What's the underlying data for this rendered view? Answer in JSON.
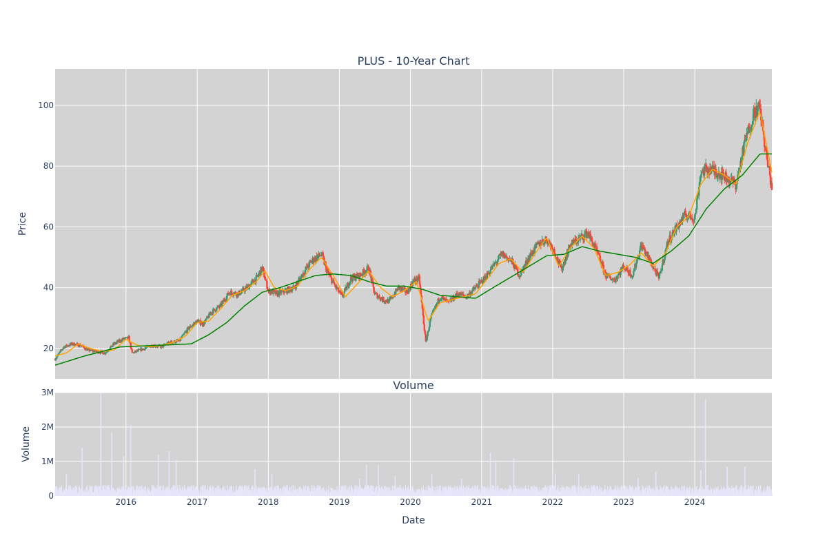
{
  "chart_data": {
    "type": "candlestick",
    "title": "PLUS - 10-Year Chart",
    "colors": {
      "plot_background": "#d3d3d3",
      "grid": "#ffffff",
      "increasing": "#3d9970",
      "decreasing": "#ff4136",
      "ma_short": "#ffa500",
      "ma_long": "#008000",
      "volume_bar": "#e6e6fa",
      "text": "#2a3f5f"
    },
    "price_panel": {
      "ylabel": "Price",
      "ylim": [
        10,
        112
      ],
      "yticks": [
        20,
        40,
        60,
        80,
        100
      ],
      "grid": true,
      "legend": "none",
      "series": [
        {
          "style": "candlestick",
          "approx_close": [
            [
              "2015-01-02",
              16.5
            ],
            [
              "2015-02-15",
              20.5
            ],
            [
              "2015-04-01",
              21.5
            ],
            [
              "2015-05-15",
              21.0
            ],
            [
              "2015-06-15",
              19.5
            ],
            [
              "2015-08-01",
              19.0
            ],
            [
              "2015-09-15",
              18.5
            ],
            [
              "2015-11-01",
              21.5
            ],
            [
              "2015-12-15",
              23.0
            ],
            [
              "2016-01-15",
              23.5
            ],
            [
              "2016-02-01",
              18.5
            ],
            [
              "2016-03-15",
              19.5
            ],
            [
              "2016-05-15",
              21.0
            ],
            [
              "2016-07-01",
              20.5
            ],
            [
              "2016-08-15",
              22.0
            ],
            [
              "2016-10-01",
              22.5
            ],
            [
              "2016-11-15",
              26.5
            ],
            [
              "2017-01-01",
              29.0
            ],
            [
              "2017-02-01",
              28.0
            ],
            [
              "2017-03-15",
              32.0
            ],
            [
              "2017-05-01",
              34.0
            ],
            [
              "2017-06-15",
              38.5
            ],
            [
              "2017-08-01",
              38.0
            ],
            [
              "2017-09-15",
              40.0
            ],
            [
              "2017-11-01",
              43.0
            ],
            [
              "2017-12-01",
              46.5
            ],
            [
              "2018-01-01",
              39.0
            ],
            [
              "2018-02-15",
              38.0
            ],
            [
              "2018-04-01",
              39.0
            ],
            [
              "2018-05-15",
              40.0
            ],
            [
              "2018-07-01",
              45.0
            ],
            [
              "2018-08-15",
              49.0
            ],
            [
              "2018-10-01",
              51.0
            ],
            [
              "2018-11-01",
              45.0
            ],
            [
              "2018-12-15",
              40.0
            ],
            [
              "2019-01-15",
              37.0
            ],
            [
              "2019-03-01",
              43.0
            ],
            [
              "2019-04-15",
              44.0
            ],
            [
              "2019-06-01",
              46.5
            ],
            [
              "2019-07-01",
              38.0
            ],
            [
              "2019-08-15",
              36.0
            ],
            [
              "2019-09-15",
              35.5
            ],
            [
              "2019-11-01",
              40.0
            ],
            [
              "2019-12-15",
              38.5
            ],
            [
              "2020-01-15",
              42.0
            ],
            [
              "2020-02-15",
              43.0
            ],
            [
              "2020-03-20",
              22.0
            ],
            [
              "2020-04-15",
              30.0
            ],
            [
              "2020-06-01",
              37.0
            ],
            [
              "2020-07-15",
              35.0
            ],
            [
              "2020-09-01",
              38.0
            ],
            [
              "2020-10-15",
              37.0
            ],
            [
              "2020-12-01",
              40.0
            ],
            [
              "2021-01-15",
              43.0
            ],
            [
              "2021-03-01",
              47.0
            ],
            [
              "2021-04-15",
              51.0
            ],
            [
              "2021-06-01",
              49.0
            ],
            [
              "2021-07-15",
              44.0
            ],
            [
              "2021-09-01",
              50.0
            ],
            [
              "2021-10-15",
              54.0
            ],
            [
              "2021-12-01",
              56.0
            ],
            [
              "2022-01-01",
              53.0
            ],
            [
              "2022-02-15",
              46.0
            ],
            [
              "2022-04-01",
              54.0
            ],
            [
              "2022-05-15",
              56.0
            ],
            [
              "2022-07-01",
              58.0
            ],
            [
              "2022-08-15",
              52.0
            ],
            [
              "2022-10-01",
              44.0
            ],
            [
              "2022-11-15",
              42.5
            ],
            [
              "2023-01-01",
              47.0
            ],
            [
              "2023-02-15",
              44.0
            ],
            [
              "2023-04-01",
              54.0
            ],
            [
              "2023-05-15",
              49.0
            ],
            [
              "2023-07-01",
              43.0
            ],
            [
              "2023-08-15",
              55.0
            ],
            [
              "2023-10-01",
              60.0
            ],
            [
              "2023-11-15",
              64.0
            ],
            [
              "2024-01-01",
              63.0
            ],
            [
              "2024-02-01",
              78.0
            ],
            [
              "2024-03-15",
              79.0
            ],
            [
              "2024-05-01",
              78.0
            ],
            [
              "2024-06-15",
              76.0
            ],
            [
              "2024-08-01",
              74.0
            ],
            [
              "2024-09-15",
              88.0
            ],
            [
              "2024-11-01",
              98.0
            ],
            [
              "2024-12-01",
              99.0
            ],
            [
              "2025-01-01",
              84.0
            ],
            [
              "2025-01-31",
              73.0
            ]
          ]
        },
        {
          "style": "line",
          "color": "#ffa500",
          "values": [
            [
              "2015-01-02",
              17.5
            ],
            [
              "2015-03-01",
              18.5
            ],
            [
              "2015-05-01",
              21.5
            ],
            [
              "2015-07-01",
              20.0
            ],
            [
              "2015-09-01",
              19.0
            ],
            [
              "2015-11-01",
              19.5
            ],
            [
              "2016-01-01",
              23.0
            ],
            [
              "2016-03-01",
              21.0
            ],
            [
              "2016-05-01",
              20.5
            ],
            [
              "2016-07-01",
              21.0
            ],
            [
              "2016-09-01",
              22.0
            ],
            [
              "2016-11-01",
              24.0
            ],
            [
              "2017-01-01",
              28.5
            ],
            [
              "2017-03-01",
              29.0
            ],
            [
              "2017-05-01",
              33.0
            ],
            [
              "2017-07-01",
              37.5
            ],
            [
              "2017-09-01",
              39.0
            ],
            [
              "2017-11-01",
              42.0
            ],
            [
              "2017-12-15",
              45.5
            ],
            [
              "2018-02-01",
              40.0
            ],
            [
              "2018-04-01",
              39.0
            ],
            [
              "2018-06-01",
              40.5
            ],
            [
              "2018-08-01",
              46.0
            ],
            [
              "2018-10-01",
              50.0
            ],
            [
              "2018-12-01",
              44.0
            ],
            [
              "2019-02-01",
              37.0
            ],
            [
              "2019-04-01",
              41.0
            ],
            [
              "2019-06-01",
              45.5
            ],
            [
              "2019-08-01",
              40.0
            ],
            [
              "2019-10-01",
              37.0
            ],
            [
              "2019-12-01",
              39.0
            ],
            [
              "2020-02-01",
              42.0
            ],
            [
              "2020-04-01",
              29.0
            ],
            [
              "2020-06-01",
              35.0
            ],
            [
              "2020-08-01",
              36.0
            ],
            [
              "2020-10-01",
              37.0
            ],
            [
              "2020-12-01",
              38.0
            ],
            [
              "2021-02-01",
              43.0
            ],
            [
              "2021-04-01",
              48.0
            ],
            [
              "2021-06-01",
              49.5
            ],
            [
              "2021-08-01",
              45.0
            ],
            [
              "2021-10-01",
              51.0
            ],
            [
              "2021-12-01",
              56.5
            ],
            [
              "2022-02-01",
              47.0
            ],
            [
              "2022-04-01",
              53.0
            ],
            [
              "2022-06-01",
              57.0
            ],
            [
              "2022-08-01",
              53.0
            ],
            [
              "2022-10-01",
              44.0
            ],
            [
              "2022-12-01",
              45.0
            ],
            [
              "2023-02-01",
              47.5
            ],
            [
              "2023-04-01",
              51.5
            ],
            [
              "2023-06-01",
              47.0
            ],
            [
              "2023-08-01",
              51.0
            ],
            [
              "2023-10-01",
              60.0
            ],
            [
              "2023-12-01",
              63.5
            ],
            [
              "2024-02-01",
              74.0
            ],
            [
              "2024-04-01",
              79.0
            ],
            [
              "2024-06-01",
              77.0
            ],
            [
              "2024-08-01",
              74.0
            ],
            [
              "2024-10-01",
              88.0
            ],
            [
              "2024-12-01",
              98.0
            ],
            [
              "2025-01-31",
              78.0
            ]
          ]
        },
        {
          "style": "line",
          "color": "#008000",
          "values": [
            [
              "2015-01-02",
              14.5
            ],
            [
              "2015-06-01",
              17.5
            ],
            [
              "2015-12-01",
              20.5
            ],
            [
              "2016-06-01",
              21.0
            ],
            [
              "2016-12-01",
              21.5
            ],
            [
              "2017-03-01",
              24.5
            ],
            [
              "2017-06-01",
              28.5
            ],
            [
              "2017-09-01",
              34.0
            ],
            [
              "2017-12-01",
              38.5
            ],
            [
              "2018-03-01",
              40.0
            ],
            [
              "2018-06-01",
              42.0
            ],
            [
              "2018-09-01",
              44.0
            ],
            [
              "2018-12-01",
              44.5
            ],
            [
              "2019-03-01",
              44.0
            ],
            [
              "2019-06-01",
              42.0
            ],
            [
              "2019-09-01",
              40.5
            ],
            [
              "2019-12-01",
              40.5
            ],
            [
              "2020-03-01",
              39.5
            ],
            [
              "2020-06-01",
              37.5
            ],
            [
              "2020-09-01",
              37.0
            ],
            [
              "2020-12-01",
              36.5
            ],
            [
              "2021-03-01",
              40.0
            ],
            [
              "2021-06-01",
              43.5
            ],
            [
              "2021-09-01",
              47.0
            ],
            [
              "2021-12-01",
              50.5
            ],
            [
              "2022-03-01",
              51.0
            ],
            [
              "2022-06-01",
              53.5
            ],
            [
              "2022-09-01",
              52.0
            ],
            [
              "2022-12-01",
              51.0
            ],
            [
              "2023-03-01",
              50.0
            ],
            [
              "2023-06-01",
              48.0
            ],
            [
              "2023-09-01",
              52.0
            ],
            [
              "2023-12-01",
              57.0
            ],
            [
              "2024-03-01",
              66.0
            ],
            [
              "2024-06-01",
              72.5
            ],
            [
              "2024-09-01",
              77.0
            ],
            [
              "2024-12-01",
              84.0
            ],
            [
              "2025-01-31",
              84.0
            ]
          ]
        }
      ]
    },
    "volume_panel": {
      "title": "Volume",
      "ylabel": "Volume",
      "xlabel": "Date",
      "ylim": [
        0,
        3000000
      ],
      "yticks": [
        0,
        1000000,
        2000000,
        3000000
      ],
      "ytick_labels": [
        "0",
        "1M",
        "2M",
        "3M"
      ],
      "grid": true,
      "spikes": [
        [
          "2015-03-01",
          650000
        ],
        [
          "2015-05-20",
          1400000
        ],
        [
          "2015-08-25",
          3000000
        ],
        [
          "2015-10-20",
          1850000
        ],
        [
          "2015-12-20",
          1150000
        ],
        [
          "2016-01-25",
          2050000
        ],
        [
          "2016-06-15",
          1200000
        ],
        [
          "2016-08-10",
          1300000
        ],
        [
          "2016-09-15",
          1050000
        ],
        [
          "2017-10-25",
          780000
        ],
        [
          "2018-01-20",
          650000
        ],
        [
          "2019-04-15",
          500000
        ],
        [
          "2019-05-20",
          900000
        ],
        [
          "2019-07-20",
          900000
        ],
        [
          "2019-10-15",
          580000
        ],
        [
          "2020-04-20",
          650000
        ],
        [
          "2020-09-20",
          500000
        ],
        [
          "2021-02-15",
          1250000
        ],
        [
          "2021-03-15",
          1050000
        ],
        [
          "2021-06-15",
          1100000
        ],
        [
          "2022-01-15",
          650000
        ],
        [
          "2022-05-15",
          650000
        ],
        [
          "2023-03-15",
          520000
        ],
        [
          "2023-06-15",
          700000
        ],
        [
          "2024-02-01",
          750000
        ],
        [
          "2024-02-25",
          2800000
        ],
        [
          "2024-06-15",
          850000
        ],
        [
          "2024-09-15",
          850000
        ]
      ]
    },
    "x_axis": {
      "range": [
        "2015-01-02",
        "2025-01-31"
      ],
      "ticks": [
        "2016-01-01",
        "2017-01-01",
        "2018-01-01",
        "2019-01-01",
        "2020-01-01",
        "2021-01-01",
        "2022-01-01",
        "2023-01-01",
        "2024-01-01"
      ],
      "tick_labels": [
        "2016",
        "2017",
        "2018",
        "2019",
        "2020",
        "2021",
        "2022",
        "2023",
        "2024"
      ]
    }
  }
}
